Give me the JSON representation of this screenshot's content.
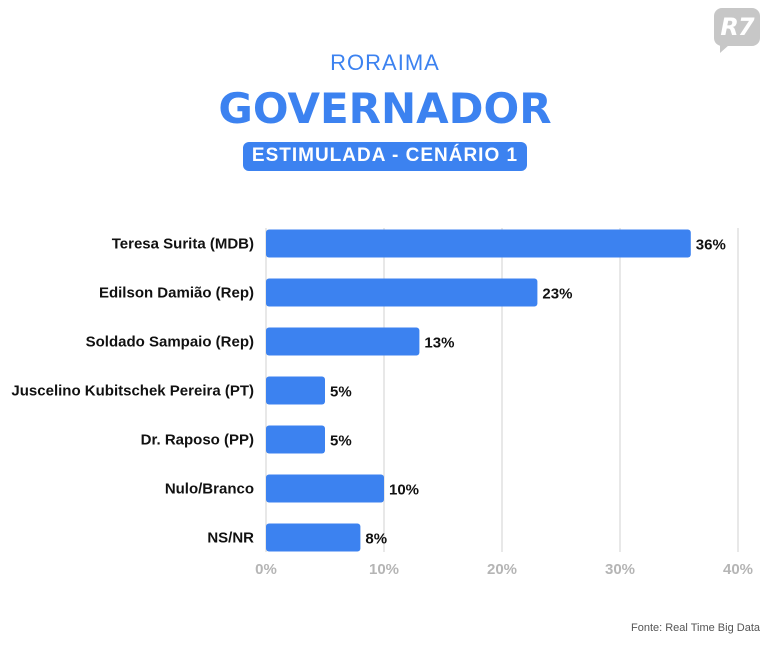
{
  "logo": {
    "text": "R7"
  },
  "header": {
    "supertitle": "RORAIMA",
    "title": "GOVERNADOR",
    "subtitle": "ESTIMULADA - CENÁRIO 1"
  },
  "source": "Fonte: Real Time Big Data",
  "colors": {
    "bar": "#3c82f0",
    "grid": "#d0d0d0",
    "tick": "#b5b5b5"
  },
  "chart_data": {
    "type": "bar",
    "orientation": "horizontal",
    "categories": [
      "Teresa Surita (MDB)",
      "Edilson Damião (Rep)",
      "Soldado Sampaio (Rep)",
      "Juscelino Kubitschek Pereira (PT)",
      "Dr. Raposo (PP)",
      "Nulo/Branco",
      "NS/NR"
    ],
    "values": [
      36,
      23,
      13,
      5,
      5,
      10,
      8
    ],
    "value_labels": [
      "36%",
      "23%",
      "13%",
      "5%",
      "5%",
      "10%",
      "8%"
    ],
    "xticks": [
      0,
      10,
      20,
      30,
      40
    ],
    "xtick_labels": [
      "0%",
      "10%",
      "20%",
      "30%",
      "40%"
    ],
    "xlim": [
      0,
      40
    ],
    "grid": "vertical"
  }
}
